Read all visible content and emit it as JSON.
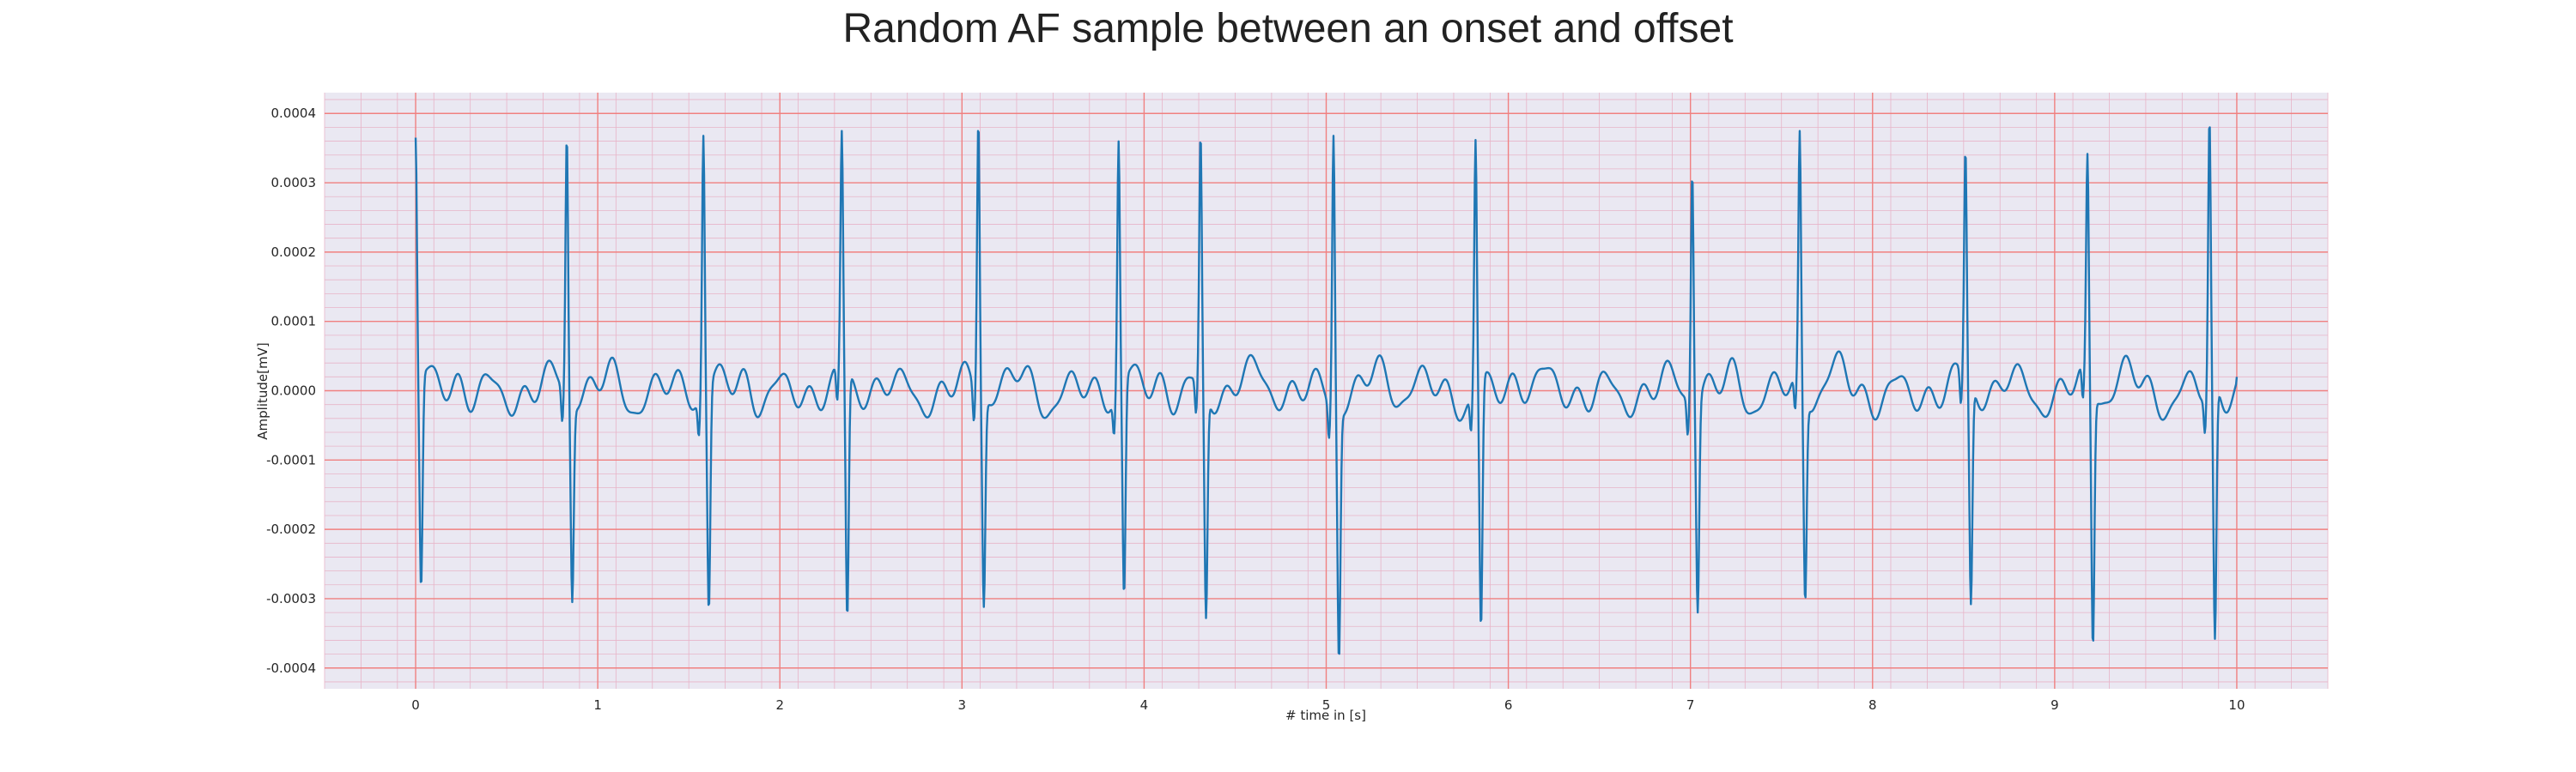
{
  "chart_data": {
    "type": "line",
    "title": "Random AF sample between an onset and offset",
    "xlabel": "# time in [s]",
    "ylabel": "Amplitude[mV]",
    "xlim": [
      -0.5,
      10.5
    ],
    "ylim": [
      -0.00043,
      0.00043
    ],
    "xticks": [
      0,
      1,
      2,
      3,
      4,
      5,
      6,
      7,
      8,
      9,
      10
    ],
    "yticks": [
      -0.0004,
      -0.0003,
      -0.0002,
      -0.0001,
      0.0,
      0.0001,
      0.0002,
      0.0003,
      0.0004
    ],
    "ytick_labels": [
      "-0.0004",
      "-0.0003",
      "-0.0002",
      "-0.0001",
      "0.0000",
      "0.0001",
      "0.0002",
      "0.0003",
      "0.0004"
    ],
    "grid": true,
    "minor_grid": true,
    "series": [
      {
        "color": "#1f77b4",
        "r_peak_times": [
          0.0,
          0.83,
          1.58,
          2.34,
          3.09,
          3.86,
          4.31,
          5.04,
          5.82,
          7.01,
          7.6,
          8.51,
          9.18,
          9.85
        ],
        "r_peak_values": [
          0.000365,
          0.000368,
          0.000368,
          0.000375,
          0.00039,
          0.00036,
          0.000372,
          0.000368,
          0.000362,
          0.000315,
          0.000375,
          0.00035,
          0.000342,
          0.000395
        ],
        "s_trough_times": [
          0.03,
          0.86,
          1.61,
          2.37,
          3.12,
          3.89,
          4.34,
          5.07,
          5.85,
          7.04,
          7.63,
          8.54,
          9.21,
          9.88
        ],
        "s_trough_values": [
          -0.000285,
          -0.000305,
          -0.000318,
          -0.000328,
          -0.000312,
          -0.000295,
          -0.000328,
          -0.00039,
          -0.000342,
          -0.00032,
          -0.000305,
          -0.000308,
          -0.00037,
          -0.000358
        ],
        "baseline_range": [
          -6e-05,
          6e-05
        ],
        "x_end": 10.0,
        "y_end": 2e-05
      }
    ],
    "colors": {
      "plot_background": "#eae8f2",
      "major_grid": "#f08080",
      "minor_grid": "#e8b4c8",
      "line": "#1f77b4"
    }
  }
}
